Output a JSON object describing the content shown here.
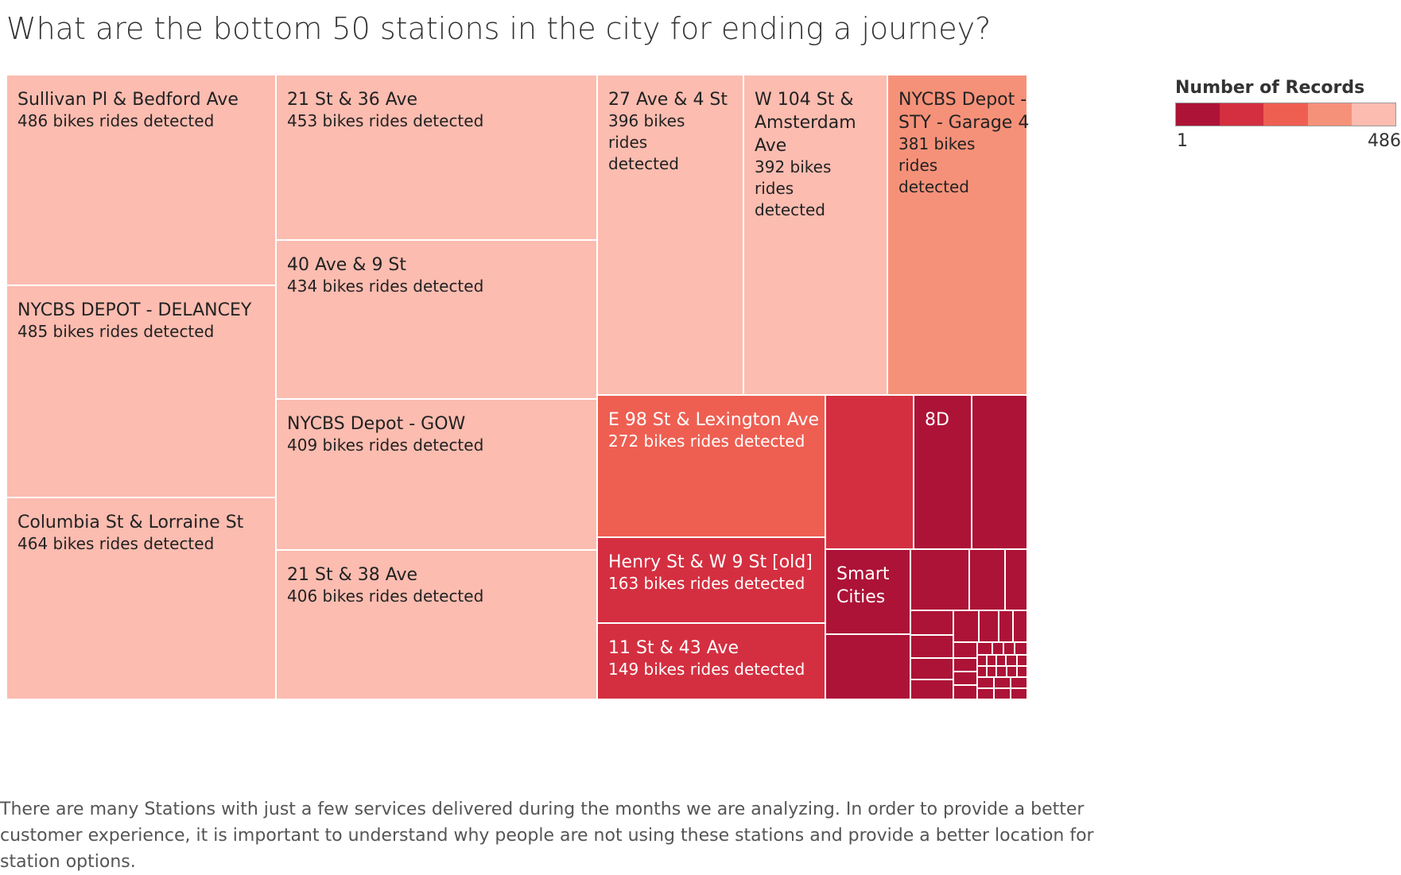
{
  "title": "What are the bottom 50 stations in the city for ending a journey?",
  "footnote": "There are many Stations with just a few services delivered during the months we are analyzing. In order to provide a better customer experience, it is important to understand why people are not using these stations and provide a better location for station options.",
  "legend": {
    "title": "Number of Records",
    "min_label": "1",
    "max_label": "486",
    "colors": [
      "#ad1337",
      "#d42f40",
      "#ee5f52",
      "#f69179",
      "#fcbcb0"
    ]
  },
  "chart_data": {
    "type": "treemap",
    "measure": "Number of Records",
    "label_suffix": "bikes rides detected",
    "stations": [
      {
        "name": "Sullivan Pl & Bedford Ave",
        "value": 486
      },
      {
        "name": "NYCBS DEPOT - DELANCEY",
        "value": 485
      },
      {
        "name": "Columbia St & Lorraine St",
        "value": 464
      },
      {
        "name": "21 St & 36 Ave",
        "value": 453
      },
      {
        "name": "40 Ave & 9 St",
        "value": 434
      },
      {
        "name": "NYCBS Depot - GOW",
        "value": 409
      },
      {
        "name": "21 St & 38 Ave",
        "value": 406
      },
      {
        "name": "27 Ave & 4 St",
        "value": 396
      },
      {
        "name": "W 104 St & Amsterdam Ave",
        "value": 392
      },
      {
        "name": "NYCBS Depot - STY - Garage 4",
        "value": 381
      },
      {
        "name": "E 98 St & Lexington Ave",
        "value": 272
      },
      {
        "name": "Henry St & W 9 St [old]",
        "value": 163
      },
      {
        "name": "11 St & 43 Ave",
        "value": 149
      },
      {
        "name": "8D",
        "value": 70
      },
      {
        "name": "Smart Cities",
        "value": 60
      }
    ]
  }
}
